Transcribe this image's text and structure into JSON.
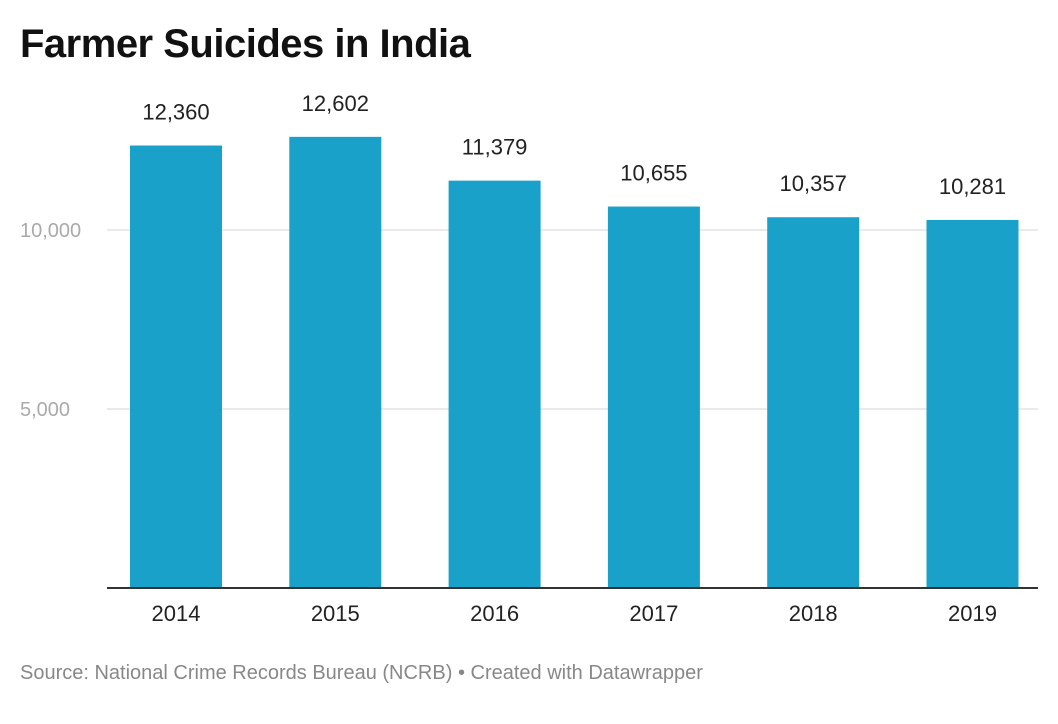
{
  "title": "Farmer Suicides in India",
  "footer": {
    "source": "Source: National Crime Records Bureau (NCRB)",
    "separator": "•",
    "credit": "Created with Datawrapper"
  },
  "colors": {
    "bar": "#1aa1ca",
    "grid": "#e4e4e4",
    "axis": "#333333"
  },
  "chart_data": {
    "type": "bar",
    "title": "Farmer Suicides in India",
    "categories": [
      "2014",
      "2015",
      "2016",
      "2017",
      "2018",
      "2019"
    ],
    "values": [
      12360,
      12602,
      11379,
      10655,
      10357,
      10281
    ],
    "value_labels": [
      "12,360",
      "12,602",
      "11,379",
      "10,655",
      "10,357",
      "10,281"
    ],
    "y_ticks": [
      5000,
      10000
    ],
    "y_tick_labels": [
      "5,000",
      "10,000"
    ],
    "ylim": [
      0,
      13000
    ],
    "grid": true,
    "legend": "none",
    "xlabel": "",
    "ylabel": ""
  }
}
